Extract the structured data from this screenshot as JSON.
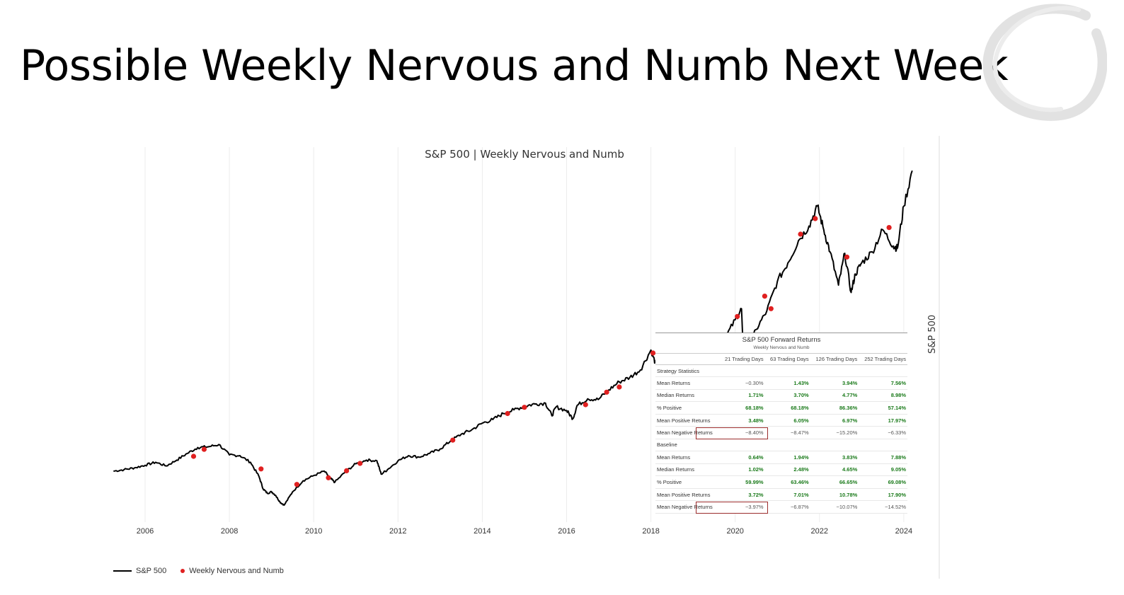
{
  "slide": {
    "title": "Possible Weekly Nervous and Numb Next Week"
  },
  "colors": {
    "line": "#000000",
    "marker": "#e02020",
    "positive": "#1a7a1a",
    "negative": "#555555",
    "highlight": "#9b2c2c"
  },
  "chart_data": {
    "type": "line",
    "title": "S&P 500 | Weekly Nervous and Numb",
    "ylabel": "S&P 500",
    "x_ticks": [
      "2006",
      "2008",
      "2010",
      "2012",
      "2014",
      "2016",
      "2018",
      "2020",
      "2022",
      "2024"
    ],
    "grid": "vertical",
    "legend": "bottom-left",
    "series": [
      {
        "name": "S&P 500",
        "type": "line",
        "x": [
          2005.25,
          2005.5,
          2005.75,
          2006.0,
          2006.25,
          2006.5,
          2006.75,
          2007.0,
          2007.25,
          2007.5,
          2007.75,
          2008.0,
          2008.25,
          2008.5,
          2008.7,
          2008.8,
          2008.9,
          2009.0,
          2009.1,
          2009.2,
          2009.3,
          2009.5,
          2009.75,
          2010.0,
          2010.25,
          2010.4,
          2010.5,
          2010.75,
          2011.0,
          2011.25,
          2011.5,
          2011.6,
          2011.75,
          2012.0,
          2012.25,
          2012.5,
          2012.75,
          2013.0,
          2013.25,
          2013.5,
          2013.75,
          2014.0,
          2014.25,
          2014.5,
          2014.75,
          2015.0,
          2015.25,
          2015.5,
          2015.65,
          2015.75,
          2016.0,
          2016.15,
          2016.25,
          2016.5,
          2016.75,
          2017.0,
          2017.25,
          2017.5,
          2017.75,
          2018.0,
          2018.1,
          2018.25,
          2018.5,
          2018.75,
          2018.97,
          2019.0,
          2019.25,
          2019.5,
          2019.75,
          2020.0,
          2020.15,
          2020.22,
          2020.35,
          2020.5,
          2020.75,
          2021.0,
          2021.25,
          2021.5,
          2021.75,
          2021.95,
          2022.1,
          2022.25,
          2022.45,
          2022.6,
          2022.75,
          2022.85,
          2023.0,
          2023.25,
          2023.5,
          2023.75,
          2023.85,
          2024.0,
          2024.2
        ],
        "y": [
          1180,
          1200,
          1225,
          1260,
          1300,
          1250,
          1330,
          1420,
          1500,
          1510,
          1540,
          1400,
          1390,
          1300,
          1110,
          940,
          880,
          900,
          850,
          760,
          720,
          900,
          1050,
          1120,
          1180,
          1080,
          1030,
          1170,
          1280,
          1330,
          1320,
          1140,
          1200,
          1320,
          1390,
          1370,
          1420,
          1480,
          1590,
          1680,
          1740,
          1830,
          1880,
          1960,
          2010,
          2060,
          2090,
          2100,
          1930,
          2050,
          2000,
          1890,
          2070,
          2160,
          2150,
          2280,
          2390,
          2450,
          2550,
          2820,
          2650,
          2680,
          2780,
          2830,
          2450,
          2600,
          2850,
          2950,
          2970,
          3230,
          3380,
          2300,
          2900,
          3100,
          3350,
          3750,
          4000,
          4300,
          4500,
          4770,
          4450,
          4150,
          3700,
          4130,
          3600,
          3850,
          4000,
          4150,
          4450,
          4230,
          4200,
          4770,
          5250
        ]
      },
      {
        "name": "Weekly Nervous and Numb",
        "type": "scatter",
        "x": [
          2007.15,
          2007.4,
          2008.75,
          2009.6,
          2010.35,
          2010.78,
          2011.1,
          2013.3,
          2014.6,
          2015.0,
          2016.45,
          2016.95,
          2017.25,
          2018.05,
          2019.25,
          2020.05,
          2020.7,
          2020.85,
          2021.55,
          2021.9,
          2022.65,
          2023.65
        ],
        "y": [
          1380,
          1475,
          1210,
          1000,
          1090,
          1185,
          1285,
          1600,
          1960,
          2045,
          2080,
          2250,
          2320,
          2780,
          2870,
          3275,
          3550,
          3380,
          4390,
          4600,
          4080,
          4480
        ]
      }
    ]
  },
  "forward_returns": {
    "title": "S&P 500 Forward Returns",
    "subtitle": "Weekly Nervous and Numb",
    "columns": [
      "21 Trading Days",
      "63 Trading Days",
      "126 Trading Days",
      "252 Trading Days"
    ],
    "sections": [
      {
        "name": "Strategy Statistics",
        "rows": [
          {
            "label": "Mean Returns",
            "values": [
              "−0.30%",
              "1.43%",
              "3.94%",
              "7.56%"
            ]
          },
          {
            "label": "Median Returns",
            "values": [
              "1.71%",
              "3.70%",
              "4.77%",
              "8.98%"
            ]
          },
          {
            "label": "% Positive",
            "values": [
              "68.18%",
              "68.18%",
              "86.36%",
              "57.14%"
            ]
          },
          {
            "label": "Mean Positive Returns",
            "values": [
              "3.48%",
              "6.05%",
              "6.97%",
              "17.97%"
            ]
          },
          {
            "label": "Mean Negative Returns",
            "values": [
              "−8.40%",
              "−8.47%",
              "−15.20%",
              "−6.33%"
            ]
          }
        ]
      },
      {
        "name": "Baseline",
        "rows": [
          {
            "label": "Mean Returns",
            "values": [
              "0.64%",
              "1.94%",
              "3.83%",
              "7.88%"
            ]
          },
          {
            "label": "Median Returns",
            "values": [
              "1.02%",
              "2.48%",
              "4.65%",
              "9.05%"
            ]
          },
          {
            "label": "% Positive",
            "values": [
              "59.99%",
              "63.46%",
              "66.65%",
              "69.08%"
            ]
          },
          {
            "label": "Mean Positive Returns",
            "values": [
              "3.72%",
              "7.01%",
              "10.78%",
              "17.90%"
            ]
          },
          {
            "label": "Mean Negative Returns",
            "values": [
              "−3.97%",
              "−6.87%",
              "−10.07%",
              "−14.52%"
            ]
          }
        ]
      }
    ]
  }
}
